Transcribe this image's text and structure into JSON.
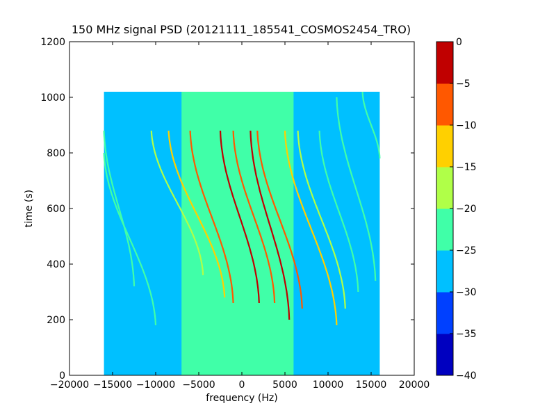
{
  "chart_data": {
    "type": "heatmap",
    "title": "150 MHz signal PSD (20121111_185541_COSMOS2454_TRO)",
    "xlabel": "frequency (Hz)",
    "ylabel": "time (s)",
    "xlim": [
      -20000,
      20000
    ],
    "ylim": [
      0,
      1200
    ],
    "xticks": [
      -20000,
      -15000,
      -10000,
      -5000,
      0,
      5000,
      10000,
      15000,
      20000
    ],
    "yticks": [
      0,
      200,
      400,
      600,
      800,
      1000,
      1200
    ],
    "data_extent": {
      "x": [
        -16000,
        16000
      ],
      "y": [
        0,
        1020
      ]
    },
    "colorbar": {
      "levels": [
        -40,
        -35,
        -30,
        -25,
        -20,
        -15,
        -10,
        -5,
        0
      ],
      "tick_labels": [
        "−40",
        "−35",
        "−30",
        "−25",
        "−20",
        "−15",
        "−10",
        "−5",
        "0"
      ],
      "colors": [
        "#0000c0",
        "#0040ff",
        "#00c0ff",
        "#40ffa8",
        "#b0ff48",
        "#ffd000",
        "#ff5800",
        "#c00000"
      ]
    },
    "background_levels": {
      "outer_band": -27.5,
      "central_band": -22.5
    },
    "central_band_x": [
      -7000,
      6000
    ],
    "traces": [
      {
        "x_top": -16000,
        "x_bottom": -12500,
        "y_start": 880,
        "y_end": 320,
        "level": -22.5
      },
      {
        "x_top": -16000,
        "x_bottom": -10000,
        "y_start": 800,
        "y_end": 180,
        "level": -22.5
      },
      {
        "x_top": -10500,
        "x_bottom": -4500,
        "y_start": 880,
        "y_end": 360,
        "level": -17.5
      },
      {
        "x_top": -8500,
        "x_bottom": -2000,
        "y_start": 880,
        "y_end": 280,
        "level": -12.5
      },
      {
        "x_top": -6000,
        "x_bottom": -1000,
        "y_start": 880,
        "y_end": 260,
        "level": -7.5
      },
      {
        "x_top": -2500,
        "x_bottom": 2000,
        "y_start": 880,
        "y_end": 260,
        "level": -2.5
      },
      {
        "x_top": -1000,
        "x_bottom": 3800,
        "y_start": 880,
        "y_end": 260,
        "level": -7.5
      },
      {
        "x_top": 1000,
        "x_bottom": 5500,
        "y_start": 880,
        "y_end": 200,
        "level": -2.5
      },
      {
        "x_top": 1800,
        "x_bottom": 7000,
        "y_start": 880,
        "y_end": 240,
        "level": -7.5
      },
      {
        "x_top": 5000,
        "x_bottom": 11000,
        "y_start": 880,
        "y_end": 180,
        "level": -12.5
      },
      {
        "x_top": 6500,
        "x_bottom": 12000,
        "y_start": 880,
        "y_end": 240,
        "level": -17.5
      },
      {
        "x_top": 9000,
        "x_bottom": 13500,
        "y_start": 880,
        "y_end": 300,
        "level": -22.5
      },
      {
        "x_top": 11000,
        "x_bottom": 15500,
        "y_start": 1000,
        "y_end": 340,
        "level": -22.5
      },
      {
        "x_top": 14000,
        "x_bottom": 16000,
        "y_start": 1020,
        "y_end": 780,
        "level": -22.5
      }
    ],
    "grid": false,
    "legend": "none"
  }
}
